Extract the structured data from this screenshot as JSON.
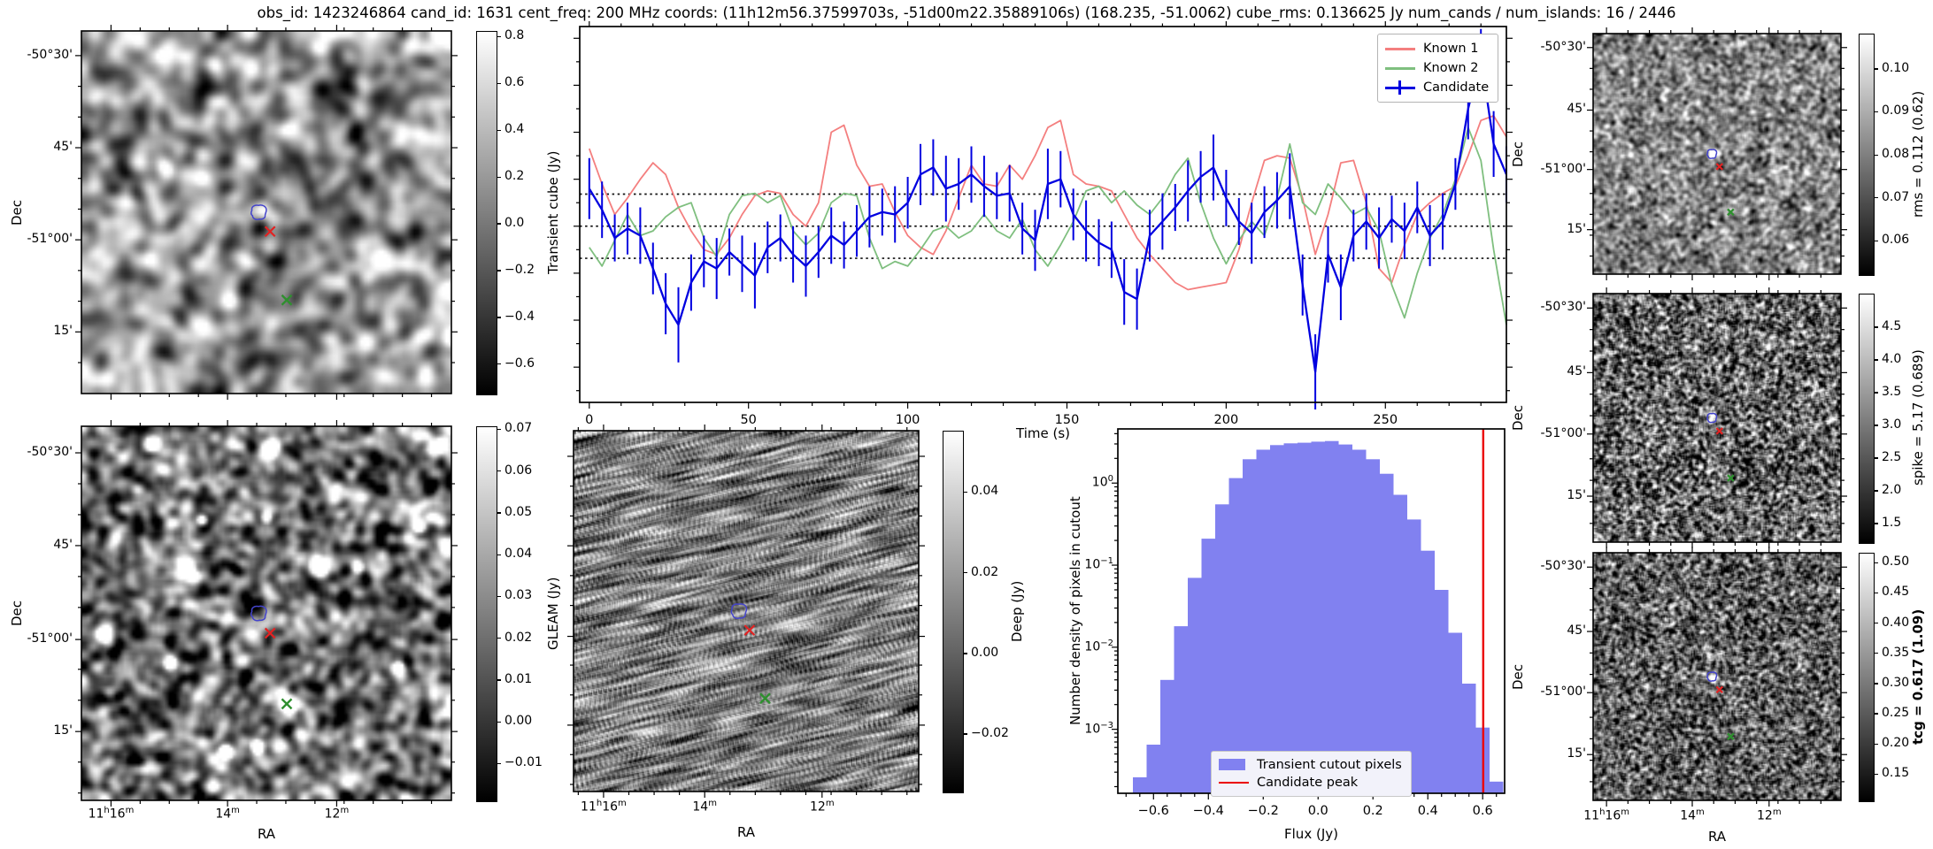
{
  "title": "obs_id: 1423246864 cand_id: 1631 cent_freq: 200 MHz coords: (11h12m56.37599703s, -51d00m22.35889106s) (168.235, -51.0062) cube_rms: 0.136625 Jy num_cands / num_islands: 16 / 2446",
  "colors": {
    "known1": "#f47f7f",
    "known2": "#7fbf7f",
    "candidate": "#0000e0",
    "hist_fill": "#8181f0",
    "peak_line": "#eb0000",
    "contour": "#4444cc",
    "red_x": "#e32222",
    "green_x": "#2f8f2f"
  },
  "markers": {
    "contour": [
      0.48,
      0.502
    ],
    "red_x": [
      0.51,
      0.553
    ],
    "green_x": [
      0.555,
      0.742
    ]
  },
  "panels": {
    "transient_cube": {
      "ylabel": "Dec",
      "dec_labels": [
        "-50°30'",
        "45'",
        "-51°00'",
        "15'"
      ],
      "colorbar": {
        "label": "Transient cube (Jy)",
        "ticks": [
          0.8,
          0.6,
          0.4,
          0.2,
          0.0,
          -0.2,
          -0.4,
          -0.6
        ],
        "decimals": 1,
        "range": [
          -0.73,
          0.82
        ]
      }
    },
    "gleam": {
      "ylabel": "Dec",
      "xlabel": "RA",
      "dec_labels": [
        "-50°30'",
        "45'",
        "-51°00'",
        "15'"
      ],
      "ra_labels": [
        "11h16m",
        "14m",
        "12m"
      ],
      "colorbar": {
        "label": "GLEAM (Jy)",
        "ticks": [
          0.07,
          0.06,
          0.05,
          0.04,
          0.03,
          0.02,
          0.01,
          0.0,
          -0.01
        ],
        "decimals": 2,
        "range": [
          -0.019,
          0.0705
        ]
      }
    },
    "deep": {
      "xlabel": "RA",
      "ra_labels": [
        "11h16m",
        "14m",
        "12m"
      ],
      "colorbar": {
        "label": "Deep (Jy)",
        "ticks": [
          0.04,
          0.02,
          0.0,
          -0.02
        ],
        "decimals": 2,
        "range": [
          -0.0345,
          0.055
        ]
      }
    },
    "rms": {
      "ylabel": "Dec",
      "dec_labels": [
        "-50°30'",
        "45'",
        "-51°00'",
        "15'"
      ],
      "colorbar": {
        "label": "rms = 0.112 (0.62)",
        "ticks": [
          0.1,
          0.09,
          0.08,
          0.07,
          0.06
        ],
        "decimals": 2,
        "range": [
          0.052,
          0.108
        ]
      }
    },
    "spike": {
      "ylabel": "Dec",
      "dec_labels": [
        "-50°30'",
        "45'",
        "-51°00'",
        "15'"
      ],
      "colorbar": {
        "label": "spike = 5.17 (0.689)",
        "ticks": [
          4.5,
          4.0,
          3.5,
          3.0,
          2.5,
          2.0,
          1.5
        ],
        "decimals": 1,
        "range": [
          1.2,
          5.0
        ]
      }
    },
    "tcg": {
      "ylabel": "Dec",
      "xlabel": "RA",
      "dec_labels": [
        "-50°30'",
        "45'",
        "-51°00'",
        "15'"
      ],
      "ra_labels": [
        "11h16m",
        "14m",
        "12m"
      ],
      "colorbar": {
        "label": "tcg = 0.617 (1.09)",
        "bold": true,
        "ticks": [
          0.5,
          0.45,
          0.4,
          0.35,
          0.3,
          0.25,
          0.2,
          0.15
        ],
        "decimals": 2,
        "range": [
          0.105,
          0.515
        ]
      }
    }
  },
  "chart_data": [
    {
      "id": "lightcurve",
      "type": "line",
      "xlabel": "Time (s)",
      "ylabel": "",
      "xlim": [
        -3,
        288
      ],
      "ylim": [
        -0.75,
        0.85
      ],
      "xticks": [
        0,
        50,
        100,
        150,
        200,
        250
      ],
      "hlines": [
        0.1366,
        0.0,
        -0.1366
      ],
      "legend_position": "upper right",
      "x": [
        0,
        4,
        8,
        12,
        16,
        20,
        24,
        28,
        32,
        36,
        40,
        44,
        48,
        52,
        56,
        60,
        64,
        68,
        72,
        76,
        80,
        84,
        88,
        92,
        96,
        100,
        104,
        108,
        112,
        116,
        120,
        124,
        128,
        132,
        136,
        140,
        144,
        148,
        152,
        156,
        160,
        164,
        168,
        172,
        176,
        180,
        184,
        188,
        192,
        196,
        200,
        204,
        208,
        212,
        216,
        220,
        224,
        228,
        232,
        236,
        240,
        244,
        248,
        252,
        256,
        260,
        264,
        268,
        272,
        276,
        280,
        284,
        288
      ],
      "series": [
        {
          "name": "Known 1",
          "color": "#f47f7f",
          "values": [
            0.33,
            0.18,
            0.05,
            0.12,
            0.2,
            0.27,
            0.22,
            0.08,
            -0.02,
            -0.1,
            -0.12,
            -0.05,
            0.05,
            0.13,
            0.15,
            0.14,
            0.05,
            0.0,
            0.1,
            0.4,
            0.43,
            0.26,
            0.17,
            0.18,
            0.06,
            -0.04,
            -0.09,
            -0.12,
            -0.02,
            0.12,
            0.26,
            0.18,
            0.17,
            0.26,
            0.2,
            0.3,
            0.42,
            0.45,
            0.22,
            0.18,
            0.17,
            0.15,
            0.05,
            -0.05,
            -0.12,
            -0.18,
            -0.24,
            -0.27,
            -0.26,
            -0.25,
            -0.24,
            -0.1,
            0.1,
            0.28,
            0.3,
            0.29,
            0.12,
            -0.12,
            0.05,
            0.27,
            0.28,
            0.1,
            -0.18,
            -0.24,
            -0.08,
            0.05,
            0.1,
            0.14,
            0.17,
            0.3,
            0.45,
            0.47,
            0.38
          ]
        },
        {
          "name": "Known 2",
          "color": "#7fbf7f",
          "values": [
            -0.09,
            -0.17,
            -0.06,
            0.05,
            -0.04,
            -0.02,
            0.04,
            0.08,
            0.1,
            -0.05,
            -0.13,
            0.05,
            0.13,
            0.14,
            0.1,
            0.13,
            -0.02,
            -0.08,
            -0.03,
            0.1,
            0.14,
            0.13,
            -0.05,
            -0.18,
            -0.15,
            -0.17,
            -0.1,
            -0.02,
            0.0,
            -0.05,
            -0.02,
            0.05,
            -0.02,
            -0.05,
            0.03,
            -0.1,
            -0.17,
            -0.08,
            0.02,
            0.15,
            0.17,
            0.1,
            0.15,
            0.09,
            0.05,
            0.12,
            0.22,
            0.29,
            0.1,
            -0.05,
            -0.16,
            -0.06,
            0.02,
            -0.04,
            0.12,
            0.35,
            0.1,
            0.05,
            0.18,
            0.12,
            0.05,
            0.08,
            -0.02,
            -0.25,
            -0.39,
            -0.2,
            -0.05,
            0.05,
            0.2,
            0.42,
            0.28,
            -0.1,
            -0.42
          ]
        },
        {
          "name": "Candidate",
          "color": "#0000e0",
          "values": [
            0.16,
            0.07,
            -0.05,
            -0.01,
            -0.04,
            -0.18,
            -0.33,
            -0.42,
            -0.24,
            -0.15,
            -0.18,
            -0.11,
            -0.16,
            -0.21,
            -0.09,
            -0.05,
            -0.12,
            -0.17,
            -0.11,
            -0.04,
            -0.08,
            -0.02,
            0.04,
            0.06,
            0.05,
            0.1,
            0.22,
            0.25,
            0.16,
            0.18,
            0.22,
            0.17,
            0.13,
            0.14,
            -0.01,
            -0.06,
            0.18,
            0.2,
            0.05,
            -0.02,
            -0.07,
            -0.1,
            -0.28,
            -0.31,
            -0.04,
            0.02,
            0.08,
            0.15,
            0.21,
            0.25,
            0.12,
            0.02,
            -0.03,
            0.06,
            0.11,
            0.17,
            -0.25,
            -0.62,
            -0.12,
            -0.26,
            -0.04,
            0.02,
            -0.05,
            0.03,
            -0.02,
            0.08,
            -0.04,
            0.02,
            0.18,
            0.5,
            0.72,
            0.35,
            0.22
          ],
          "errors": [
            0.13,
            0.12,
            0.1,
            0.11,
            0.12,
            0.11,
            0.13,
            0.16,
            0.12,
            0.11,
            0.13,
            0.1,
            0.12,
            0.14,
            0.11,
            0.1,
            0.12,
            0.13,
            0.11,
            0.12,
            0.1,
            0.11,
            0.13,
            0.1,
            0.12,
            0.11,
            0.13,
            0.12,
            0.14,
            0.11,
            0.12,
            0.13,
            0.1,
            0.12,
            0.11,
            0.13,
            0.15,
            0.12,
            0.11,
            0.13,
            0.1,
            0.12,
            0.14,
            0.13,
            0.11,
            0.12,
            0.1,
            0.13,
            0.11,
            0.14,
            0.12,
            0.1,
            0.13,
            0.11,
            0.12,
            0.14,
            0.13,
            0.16,
            0.12,
            0.14,
            0.11,
            0.12,
            0.13,
            0.1,
            0.12,
            0.11,
            0.13,
            0.12,
            0.11,
            0.13,
            0.12,
            0.14,
            0.12
          ]
        }
      ]
    },
    {
      "id": "pixel_histogram",
      "type": "bar",
      "xlabel": "Flux (Jy)",
      "ylabel": "Number density of pixels in cutout",
      "yscale": "log",
      "xlim": [
        -0.73,
        0.68
      ],
      "ylim_log": [
        -3.78,
        0.66
      ],
      "xticks": [
        -0.6,
        -0.4,
        -0.2,
        0.0,
        0.2,
        0.4,
        0.6
      ],
      "yticks_exp": [
        0,
        -1,
        -2,
        -3
      ],
      "bin_width": 0.05,
      "bin_centers": [
        -0.65,
        -0.6,
        -0.55,
        -0.5,
        -0.45,
        -0.4,
        -0.35,
        -0.3,
        -0.25,
        -0.2,
        -0.15,
        -0.1,
        -0.05,
        0.0,
        0.05,
        0.1,
        0.15,
        0.2,
        0.25,
        0.3,
        0.35,
        0.4,
        0.45,
        0.5,
        0.55,
        0.6,
        0.65
      ],
      "values": [
        0.00026,
        0.00065,
        0.004,
        0.018,
        0.07,
        0.21,
        0.55,
        1.15,
        1.95,
        2.55,
        2.9,
        3.05,
        3.1,
        3.2,
        3.25,
        2.95,
        2.55,
        1.95,
        1.3,
        0.72,
        0.36,
        0.15,
        0.05,
        0.015,
        0.0036,
        0.00105,
        0.00023
      ],
      "vline": {
        "x": 0.602,
        "label": "Candidate peak"
      },
      "legend": [
        "Transient cutout pixels",
        "Candidate peak"
      ]
    }
  ]
}
